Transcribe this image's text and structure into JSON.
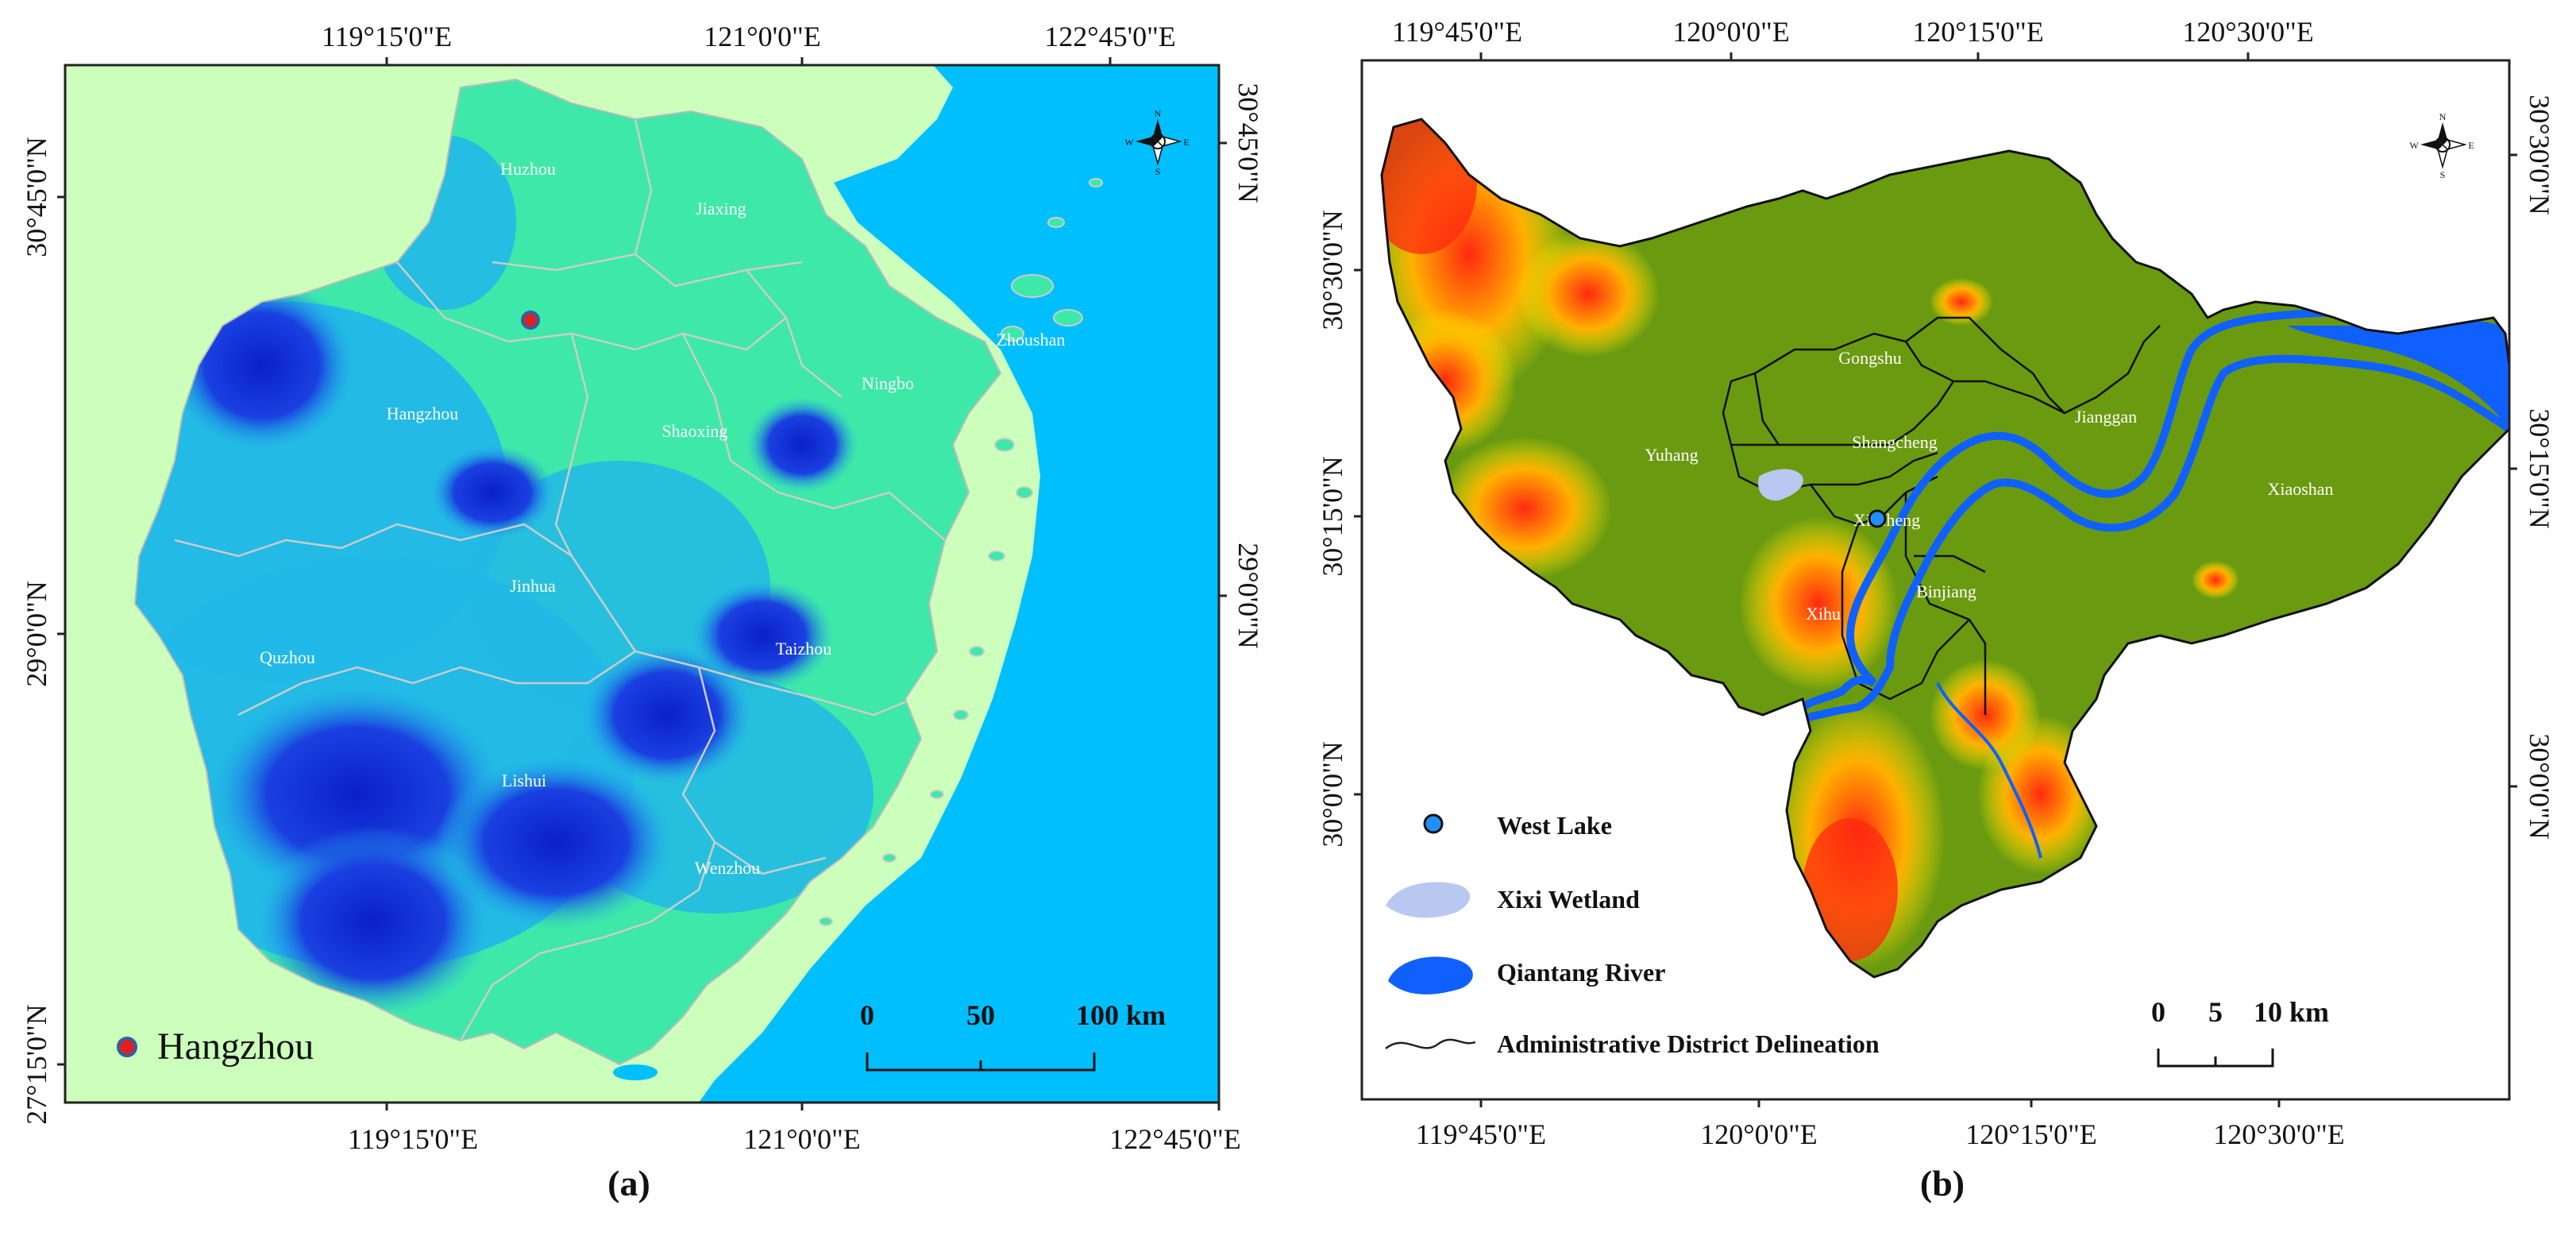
{
  "colors": {
    "sea": "#00bfff",
    "land_outside_a": "#ccffbb",
    "province_fill": "#3ee8a8",
    "terrain_mid": "#22b8e8",
    "terrain_high": "#1430d8",
    "land_b": "#6a9a10",
    "high_b": "#ff3010",
    "mid_b": "#ffee00",
    "river": "#1060ff",
    "wetland": "#b8c8f0",
    "marker": "#e02020"
  },
  "map_a": {
    "label": "(a)",
    "top_ticks": [
      "119°15'0\"E",
      "121°0'0\"E",
      "122°45'0\"E"
    ],
    "bottom_ticks": [
      "119°15'0\"E",
      "121°0'0\"E",
      "122°45'0\"E"
    ],
    "left_ticks": [
      "30°45'0\"N",
      "29°0'0\"N",
      "27°15'0\"N"
    ],
    "right_ticks": [
      "30°45'0\"N",
      "29°0'0\"N"
    ],
    "cities": [
      "Huzhou",
      "Jiaxing",
      "Zhoushan",
      "Ningbo",
      "Hangzhou",
      "Shaoxing",
      "Jinhua",
      "Quzhou",
      "Taizhou",
      "Lishui",
      "Wenzhou"
    ],
    "legend_label": "Hangzhou",
    "scale": {
      "ticks": [
        "0",
        "50",
        "100 km"
      ]
    },
    "compass": [
      "N",
      "E",
      "S",
      "W"
    ]
  },
  "map_b": {
    "label": "(b)",
    "top_ticks": [
      "119°45'0\"E",
      "120°0'0\"E",
      "120°15'0\"E",
      "120°30'0\"E"
    ],
    "bottom_ticks": [
      "119°45'0\"E",
      "120°0'0\"E",
      "120°15'0\"E",
      "120°30'0\"E"
    ],
    "left_ticks": [
      "30°30'0\"N",
      "30°15'0\"N",
      "30°0'0\"N"
    ],
    "right_ticks": [
      "30°30'0\"N",
      "30°15'0\"N",
      "30°0'0\"N"
    ],
    "districts": [
      "Gongshu",
      "Jianggan",
      "Yuhang",
      "Shangcheng",
      "Xiacheng",
      "Xiaoshan",
      "Binjiang",
      "Xihu"
    ],
    "legend": [
      "West Lake",
      "Xixi Wetland",
      "Qiantang River",
      "Administrative District Delineation"
    ],
    "scale": {
      "ticks": [
        "0",
        "5",
        "10 km"
      ]
    },
    "compass": [
      "N",
      "E",
      "S",
      "W"
    ]
  }
}
